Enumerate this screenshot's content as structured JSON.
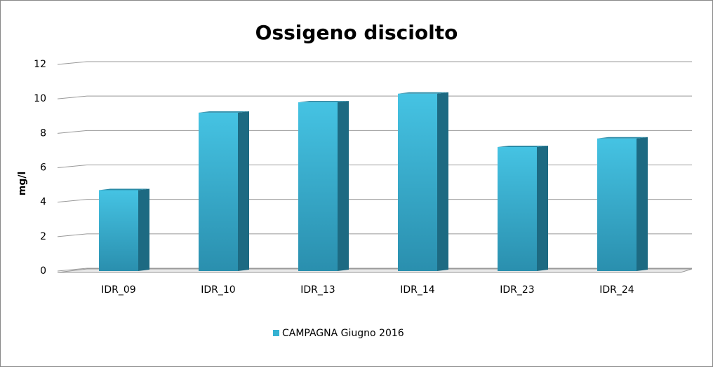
{
  "chart_data": {
    "type": "bar",
    "title": "Ossigeno disciolto",
    "y_label": "mg/l",
    "categories": [
      "IDR_09",
      "IDR_10",
      "IDR_13",
      "IDR_14",
      "IDR_23",
      "IDR_24"
    ],
    "series": [
      {
        "name": "CAMPAGNA Giugno 2016",
        "color": "#35b2d2",
        "values": [
          4.7,
          9.2,
          9.8,
          10.3,
          7.2,
          7.7
        ]
      }
    ],
    "ylim": [
      0,
      12
    ],
    "yticks": [
      0,
      2,
      4,
      6,
      8,
      10,
      12
    ],
    "grid": true,
    "legend": "bottom"
  }
}
